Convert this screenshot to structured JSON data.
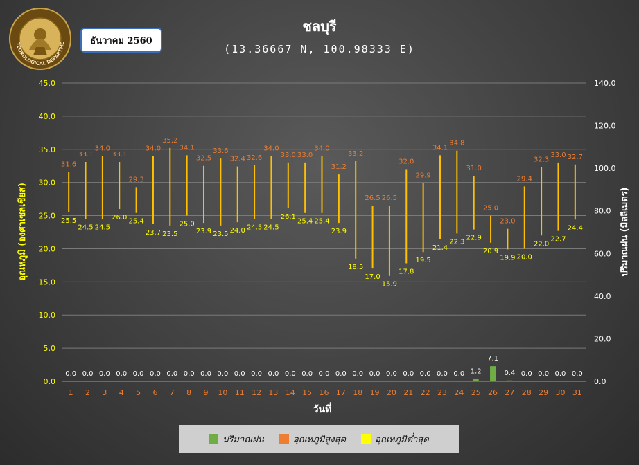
{
  "header": {
    "title": "ชลบุรี",
    "subtitle": "(13.36667 N, 100.98333 E)",
    "month_label": "ธันวาคม 2560",
    "logo_text": "METEOROLOGICAL DEPARTMENT"
  },
  "legend": {
    "rain_label": "ปริมาณฝน",
    "max_label": "อุณหภูมิสูงสุด",
    "min_label": "อุณหภูมิต่ำสุด"
  },
  "colors": {
    "rain": "#70ad47",
    "max_temp": "#ed7d31",
    "min_temp": "#ffff00",
    "range_line": "#ffc000",
    "axis_left": "#ffff00",
    "axis_right": "#ffffff",
    "x_ticks": "#ed7d31"
  },
  "chart_data": {
    "type": "bar",
    "title": "ชลบุรี",
    "subtitle": "(13.36667 N, 100.98333 E)",
    "xlabel": "วันที่",
    "ylabel": "อุณหภูมิ (องศาเซลเซียส)",
    "y2label": "ปริมาณฝน (มิลลิเมตร)",
    "ylim": [
      0,
      45
    ],
    "y2lim": [
      0,
      140
    ],
    "y_ticks": [
      "0.0",
      "5.0",
      "10.0",
      "15.0",
      "20.0",
      "25.0",
      "30.0",
      "35.0",
      "40.0",
      "45.0"
    ],
    "y2_ticks": [
      "0.0",
      "20.0",
      "40.0",
      "60.0",
      "80.0",
      "100.0",
      "120.0",
      "140.0"
    ],
    "grid": true,
    "legend_position": "bottom",
    "categories": [
      "1",
      "2",
      "3",
      "4",
      "5",
      "6",
      "7",
      "8",
      "9",
      "10",
      "11",
      "12",
      "13",
      "14",
      "15",
      "16",
      "17",
      "18",
      "19",
      "20",
      "21",
      "22",
      "23",
      "24",
      "25",
      "26",
      "27",
      "28",
      "29",
      "30",
      "31"
    ],
    "series": [
      {
        "name": "ปริมาณฝน",
        "type": "bar",
        "axis": "right",
        "values": [
          0.0,
          0.0,
          0.0,
          0.0,
          0.0,
          0.0,
          0.0,
          0.0,
          0.0,
          0.0,
          0.0,
          0.0,
          0.0,
          0.0,
          0.0,
          0.0,
          0.0,
          0.0,
          0.0,
          0.0,
          0.0,
          0.0,
          0.0,
          0.0,
          1.2,
          7.1,
          0.4,
          0.0,
          0.0,
          0.0,
          0.0
        ]
      },
      {
        "name": "อุณหภูมิสูงสุด",
        "type": "range-high",
        "axis": "left",
        "values": [
          31.6,
          33.1,
          34.0,
          33.1,
          29.3,
          34.0,
          35.2,
          34.1,
          32.5,
          33.6,
          32.4,
          32.6,
          34.0,
          33.0,
          33.0,
          34.0,
          31.2,
          33.2,
          26.5,
          26.5,
          32.0,
          29.9,
          34.1,
          34.8,
          31.0,
          25.0,
          23.0,
          29.4,
          32.3,
          33.0,
          32.7
        ]
      },
      {
        "name": "อุณหภูมิต่ำสุด",
        "type": "range-low",
        "axis": "left",
        "values": [
          25.5,
          24.5,
          24.5,
          26.0,
          25.4,
          23.7,
          23.5,
          25.0,
          23.9,
          23.5,
          24.0,
          24.5,
          24.5,
          26.1,
          25.4,
          25.4,
          23.9,
          18.5,
          17.0,
          15.9,
          17.8,
          19.5,
          21.4,
          22.3,
          22.9,
          20.9,
          19.9,
          20.0,
          22.0,
          22.7,
          24.4
        ]
      }
    ]
  }
}
